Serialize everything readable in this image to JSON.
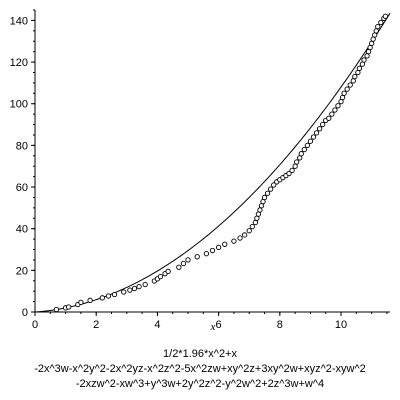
{
  "chart_data": {
    "type": "scatter",
    "xlabel": "x",
    "xlim": [
      0,
      11.6
    ],
    "ylim": [
      0,
      145
    ],
    "x_ticks": [
      0,
      2,
      4,
      6,
      8,
      10
    ],
    "y_ticks": [
      0,
      20,
      40,
      60,
      80,
      100,
      120,
      140
    ],
    "grid": false,
    "fit_curve": {
      "expression": "1/2*1.96*x^2+x",
      "a": 0.98,
      "b": 1,
      "x_range": [
        0,
        11.6
      ]
    },
    "points": [
      [
        0.7,
        1.2
      ],
      [
        1.0,
        2.0
      ],
      [
        1.1,
        2.4
      ],
      [
        1.4,
        3.6
      ],
      [
        1.5,
        4.6
      ],
      [
        1.8,
        5.6
      ],
      [
        2.2,
        6.8
      ],
      [
        2.4,
        7.7
      ],
      [
        2.6,
        8.4
      ],
      [
        2.9,
        9.6
      ],
      [
        3.1,
        10.5
      ],
      [
        3.25,
        11.3
      ],
      [
        3.4,
        12.2
      ],
      [
        3.6,
        13.2
      ],
      [
        3.9,
        14.9
      ],
      [
        4.0,
        15.9
      ],
      [
        4.1,
        17.0
      ],
      [
        4.25,
        18.4
      ],
      [
        4.35,
        19.5
      ],
      [
        4.7,
        21.5
      ],
      [
        4.85,
        23.3
      ],
      [
        5.0,
        25.0
      ],
      [
        5.3,
        26.5
      ],
      [
        5.6,
        28.0
      ],
      [
        5.8,
        29.5
      ],
      [
        6.0,
        31.0
      ],
      [
        6.2,
        32.5
      ],
      [
        6.5,
        34.0
      ],
      [
        6.7,
        35.5
      ],
      [
        6.85,
        37.0
      ],
      [
        7.0,
        39.0
      ],
      [
        7.1,
        41.0
      ],
      [
        7.2,
        43.0
      ],
      [
        7.25,
        45.0
      ],
      [
        7.3,
        47.0
      ],
      [
        7.35,
        49.0
      ],
      [
        7.4,
        51.0
      ],
      [
        7.45,
        53.0
      ],
      [
        7.5,
        55.0
      ],
      [
        7.6,
        57.0
      ],
      [
        7.7,
        59.0
      ],
      [
        7.8,
        61.0
      ],
      [
        7.9,
        62.5
      ],
      [
        8.0,
        63.5
      ],
      [
        8.1,
        64.5
      ],
      [
        8.2,
        65.5
      ],
      [
        8.3,
        66.5
      ],
      [
        8.4,
        68.0
      ],
      [
        8.5,
        70.0
      ],
      [
        8.55,
        72.0
      ],
      [
        8.65,
        74.0
      ],
      [
        8.7,
        76.0
      ],
      [
        8.8,
        78.0
      ],
      [
        8.9,
        80.0
      ],
      [
        9.0,
        82.0
      ],
      [
        9.1,
        84.0
      ],
      [
        9.2,
        86.0
      ],
      [
        9.3,
        88.0
      ],
      [
        9.4,
        90.0
      ],
      [
        9.5,
        92.0
      ],
      [
        9.6,
        93.0
      ],
      [
        9.7,
        95.0
      ],
      [
        9.8,
        97.0
      ],
      [
        9.9,
        99.0
      ],
      [
        10.0,
        101.0
      ],
      [
        10.05,
        103.0
      ],
      [
        10.1,
        105.0
      ],
      [
        10.2,
        107.0
      ],
      [
        10.3,
        109.0
      ],
      [
        10.4,
        111.0
      ],
      [
        10.45,
        113.0
      ],
      [
        10.55,
        115.0
      ],
      [
        10.6,
        117.0
      ],
      [
        10.7,
        119.0
      ],
      [
        10.75,
        121.0
      ],
      [
        10.85,
        123.0
      ],
      [
        10.9,
        125.0
      ],
      [
        10.95,
        127.0
      ],
      [
        11.0,
        129.0
      ],
      [
        11.05,
        131.0
      ],
      [
        11.1,
        133.0
      ],
      [
        11.15,
        135.0
      ],
      [
        11.2,
        137.0
      ],
      [
        11.3,
        139.0
      ],
      [
        11.4,
        141.0
      ],
      [
        11.45,
        142.0
      ]
    ]
  },
  "caption": {
    "line1": "1/2*1.96*x^2+x",
    "line2": "-2x^3w-x^2y^2-2x^2yz-x^2z^2-5x^2zw+xy^2z+3xy^2w+xyz^2-xyw^2",
    "line3": "-2xzw^2-xw^3+y^3w+2y^2z^2-y^2w^2+2z^3w+w^4"
  },
  "style": {
    "curve_color": "#000000",
    "marker_color": "#000000",
    "axis_color": "#000000"
  }
}
